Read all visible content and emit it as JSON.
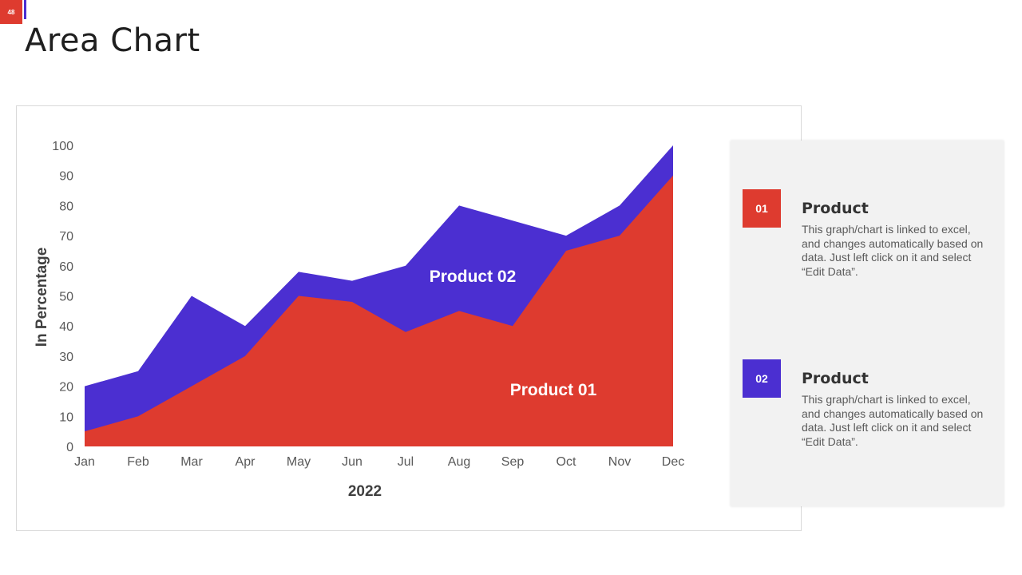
{
  "page": {
    "number": "48",
    "title": "Area Chart"
  },
  "colors": {
    "product01": "#de3b2f",
    "product02": "#4b2fd1",
    "panel_bg": "#f2f2f2"
  },
  "chart_data": {
    "type": "area",
    "stacked": false,
    "categories": [
      "Jan",
      "Feb",
      "Mar",
      "Apr",
      "May",
      "Jun",
      "Jul",
      "Aug",
      "Sep",
      "Oct",
      "Nov",
      "Dec"
    ],
    "series": [
      {
        "name": "Product 02",
        "values": [
          20,
          25,
          50,
          40,
          58,
          55,
          60,
          80,
          75,
          70,
          80,
          100
        ],
        "color": "#4b2fd1"
      },
      {
        "name": "Product 01",
        "values": [
          5,
          10,
          20,
          30,
          50,
          48,
          38,
          45,
          40,
          65,
          70,
          90
        ],
        "color": "#de3b2f"
      }
    ],
    "xlabel": "2022",
    "ylabel": "In Percentage",
    "ylim": [
      0,
      100
    ],
    "yticks": [
      0,
      10,
      20,
      30,
      40,
      50,
      60,
      70,
      80,
      90,
      100
    ],
    "grid": false,
    "legend": "none"
  },
  "legend_panel": {
    "items": [
      {
        "badge": "01",
        "title": "Product",
        "description": "This graph/chart is linked to excel, and changes automatically based on data. Just left click on it and select “Edit Data”."
      },
      {
        "badge": "02",
        "title": "Product",
        "description": "This graph/chart is linked to excel, and changes automatically based on data. Just left click on it and select “Edit Data”."
      }
    ]
  }
}
